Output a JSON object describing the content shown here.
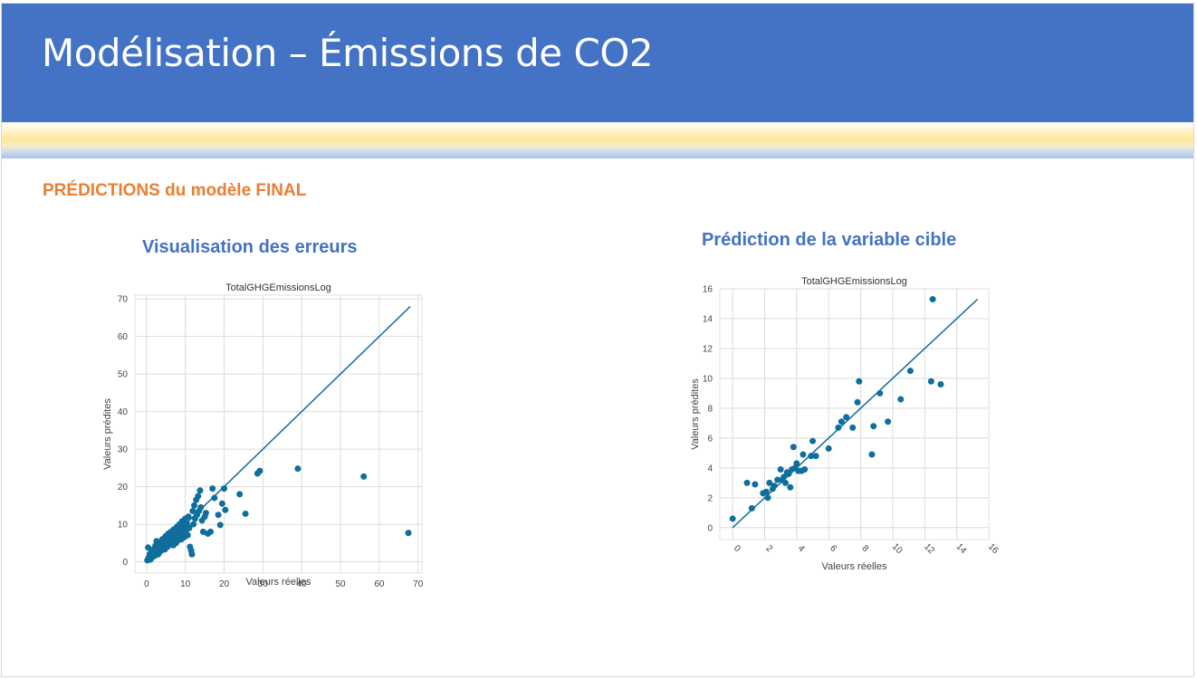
{
  "slide": {
    "title": "Modélisation – Émissions de CO2",
    "section_heading": "PRÉDICTIONS du modèle FINAL"
  },
  "colors": {
    "title_bar": "#4472c4",
    "section_heading": "#ed7d31",
    "chart_heading": "#4472c4",
    "series": "#0f6e9c"
  },
  "left_panel": {
    "heading": "Visualisation des erreurs"
  },
  "right_panel": {
    "heading": "Prédiction de la variable cible"
  },
  "chart_data": [
    {
      "type": "scatter",
      "title": "TotalGHGEmissionsLog",
      "xlabel": "Valeurs réelles",
      "ylabel": "Valeurs prédites",
      "xlim": [
        -3,
        71
      ],
      "ylim": [
        -3,
        71
      ],
      "xticks": [
        0,
        10,
        20,
        30,
        40,
        50,
        60,
        70
      ],
      "yticks": [
        0,
        10,
        20,
        30,
        40,
        50,
        60,
        70
      ],
      "xtick_rotation": 0,
      "grid": true,
      "reference_line": [
        [
          0,
          0
        ],
        [
          68,
          68
        ]
      ],
      "points": [
        [
          0.2,
          0.4
        ],
        [
          0.4,
          3.8
        ],
        [
          0.5,
          1.0
        ],
        [
          0.8,
          2.0
        ],
        [
          1.0,
          0.6
        ],
        [
          1.1,
          1.5
        ],
        [
          1.3,
          2.8
        ],
        [
          1.5,
          1.2
        ],
        [
          1.6,
          3.0
        ],
        [
          1.8,
          2.2
        ],
        [
          2.0,
          3.5
        ],
        [
          2.1,
          1.6
        ],
        [
          2.3,
          4.3
        ],
        [
          2.5,
          2.6
        ],
        [
          2.6,
          5.5
        ],
        [
          2.8,
          3.1
        ],
        [
          3.0,
          2.0
        ],
        [
          3.1,
          4.0
        ],
        [
          3.3,
          3.4
        ],
        [
          3.5,
          5.0
        ],
        [
          3.6,
          2.8
        ],
        [
          3.8,
          4.6
        ],
        [
          4.0,
          3.7
        ],
        [
          4.1,
          6.0
        ],
        [
          4.3,
          4.2
        ],
        [
          4.5,
          5.4
        ],
        [
          4.7,
          3.3
        ],
        [
          4.9,
          6.8
        ],
        [
          5.0,
          4.8
        ],
        [
          5.2,
          5.9
        ],
        [
          5.4,
          4.0
        ],
        [
          5.6,
          7.5
        ],
        [
          5.8,
          5.2
        ],
        [
          6.0,
          6.4
        ],
        [
          6.1,
          4.6
        ],
        [
          6.3,
          8.0
        ],
        [
          6.5,
          5.6
        ],
        [
          6.7,
          7.0
        ],
        [
          6.9,
          4.4
        ],
        [
          7.0,
          8.6
        ],
        [
          7.2,
          6.2
        ],
        [
          7.4,
          7.6
        ],
        [
          7.6,
          5.0
        ],
        [
          7.8,
          9.3
        ],
        [
          8.0,
          6.8
        ],
        [
          8.1,
          8.2
        ],
        [
          8.3,
          5.8
        ],
        [
          8.5,
          10.0
        ],
        [
          8.7,
          7.2
        ],
        [
          8.9,
          8.9
        ],
        [
          9.0,
          6.0
        ],
        [
          9.2,
          10.8
        ],
        [
          9.4,
          7.8
        ],
        [
          9.6,
          9.5
        ],
        [
          9.8,
          6.6
        ],
        [
          10.0,
          11.5
        ],
        [
          10.2,
          8.4
        ],
        [
          10.4,
          10.2
        ],
        [
          10.6,
          7.1
        ],
        [
          10.8,
          12.0
        ],
        [
          11.0,
          9.0
        ],
        [
          11.2,
          4.0
        ],
        [
          11.5,
          3.0
        ],
        [
          11.7,
          2.0
        ],
        [
          11.9,
          13.5
        ],
        [
          12.1,
          10.0
        ],
        [
          12.3,
          15.0
        ],
        [
          12.5,
          11.5
        ],
        [
          12.8,
          16.5
        ],
        [
          13.0,
          12.5
        ],
        [
          13.3,
          17.5
        ],
        [
          13.5,
          13.5
        ],
        [
          13.8,
          19.0
        ],
        [
          14.0,
          14.5
        ],
        [
          14.3,
          11.0
        ],
        [
          14.6,
          8.0
        ],
        [
          15.0,
          12.0
        ],
        [
          15.3,
          13.0
        ],
        [
          15.8,
          7.5
        ],
        [
          16.5,
          8.0
        ],
        [
          17.0,
          19.5
        ],
        [
          17.5,
          17.0
        ],
        [
          18.5,
          12.5
        ],
        [
          19.0,
          9.8
        ],
        [
          19.5,
          15.5
        ],
        [
          20.0,
          19.5
        ],
        [
          20.3,
          13.8
        ],
        [
          24.0,
          18.0
        ],
        [
          25.5,
          12.8
        ],
        [
          28.6,
          23.5
        ],
        [
          29.2,
          24.2
        ],
        [
          39.0,
          24.8
        ],
        [
          56.0,
          22.7
        ],
        [
          67.5,
          7.7
        ]
      ]
    },
    {
      "type": "scatter",
      "title": "TotalGHGEmissionsLog",
      "xlabel": "Valeurs réelles",
      "ylabel": "Valeurs prédites",
      "xlim": [
        -0.8,
        16
      ],
      "ylim": [
        -0.8,
        16
      ],
      "xticks": [
        0,
        2,
        4,
        6,
        8,
        10,
        12,
        14,
        16
      ],
      "yticks": [
        0,
        2,
        4,
        6,
        8,
        10,
        12,
        14,
        16
      ],
      "xtick_rotation": 45,
      "grid": true,
      "reference_line": [
        [
          0,
          0
        ],
        [
          15.3,
          15.3
        ]
      ],
      "points": [
        [
          0.0,
          0.6
        ],
        [
          0.9,
          3.0
        ],
        [
          1.2,
          1.3
        ],
        [
          1.4,
          2.9
        ],
        [
          1.9,
          2.3
        ],
        [
          2.1,
          2.4
        ],
        [
          2.2,
          2.0
        ],
        [
          2.3,
          3.0
        ],
        [
          2.5,
          2.6
        ],
        [
          2.6,
          2.8
        ],
        [
          2.8,
          3.2
        ],
        [
          3.0,
          3.9
        ],
        [
          3.1,
          3.2
        ],
        [
          3.2,
          3.4
        ],
        [
          3.3,
          3.0
        ],
        [
          3.4,
          3.7
        ],
        [
          3.5,
          3.6
        ],
        [
          3.6,
          2.7
        ],
        [
          3.7,
          3.9
        ],
        [
          3.8,
          5.4
        ],
        [
          3.9,
          4.0
        ],
        [
          4.0,
          4.3
        ],
        [
          4.1,
          3.8
        ],
        [
          4.3,
          3.8
        ],
        [
          4.4,
          4.9
        ],
        [
          4.5,
          3.9
        ],
        [
          4.9,
          4.8
        ],
        [
          5.0,
          5.8
        ],
        [
          5.2,
          4.8
        ],
        [
          6.0,
          5.3
        ],
        [
          6.6,
          6.7
        ],
        [
          6.8,
          7.1
        ],
        [
          7.1,
          7.4
        ],
        [
          7.5,
          6.7
        ],
        [
          7.8,
          8.4
        ],
        [
          7.9,
          9.8
        ],
        [
          8.7,
          4.9
        ],
        [
          8.8,
          6.8
        ],
        [
          9.2,
          9.0
        ],
        [
          9.7,
          7.1
        ],
        [
          10.5,
          8.6
        ],
        [
          11.1,
          10.5
        ],
        [
          12.4,
          9.8
        ],
        [
          12.5,
          15.3
        ],
        [
          13.0,
          9.6
        ]
      ]
    }
  ]
}
